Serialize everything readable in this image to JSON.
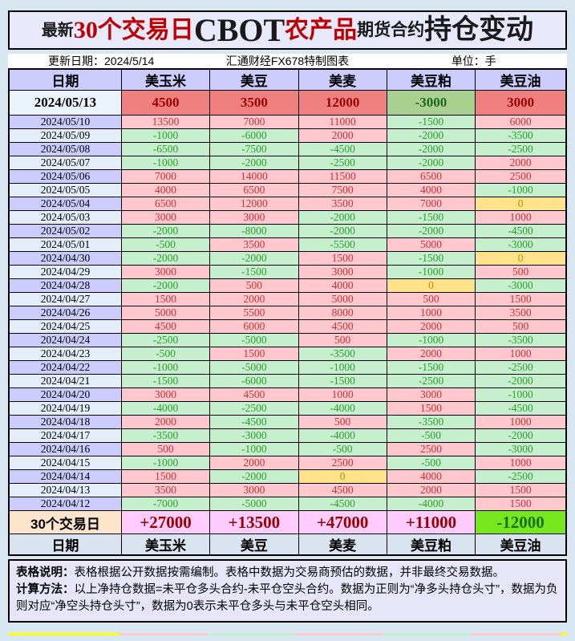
{
  "title": {
    "parts": [
      {
        "text": "最新"
      },
      {
        "text": "30个交易日"
      },
      {
        "text": "CBOT"
      },
      {
        "text": "农产品"
      },
      {
        "text": "期货合约"
      },
      {
        "text": "持仓变动"
      }
    ],
    "accent_red": "#c00000"
  },
  "subtitle": {
    "update_date": "更新日期：2024/5/14",
    "source": "汇通财经FX678特制图表",
    "unit": "单位：手"
  },
  "chart_data": {
    "type": "table",
    "title": "最新30个交易日CBOT农产品期货合约持仓变动",
    "unit": "手",
    "update_date": "2024/5/14",
    "columns": [
      "日期",
      "美玉米",
      "美豆",
      "美麦",
      "美豆粕",
      "美豆油"
    ],
    "rows": [
      {
        "date": "2024/05/13",
        "values": [
          4500,
          3500,
          12000,
          -3000,
          3000
        ],
        "latest": true
      },
      {
        "date": "2024/05/10",
        "values": [
          13500,
          7000,
          11000,
          -1500,
          6000
        ]
      },
      {
        "date": "2024/05/09",
        "values": [
          -1000,
          -6000,
          2000,
          -2000,
          -3500
        ]
      },
      {
        "date": "2024/05/08",
        "values": [
          -6500,
          -7500,
          -4500,
          -2000,
          -2500
        ]
      },
      {
        "date": "2024/05/07",
        "values": [
          -1000,
          -2000,
          -2500,
          -2000,
          2000
        ]
      },
      {
        "date": "2024/05/06",
        "values": [
          7000,
          14000,
          11500,
          6500,
          2500
        ]
      },
      {
        "date": "2024/05/05",
        "values": [
          4000,
          6500,
          7500,
          4000,
          -1000
        ]
      },
      {
        "date": "2024/05/04",
        "values": [
          6500,
          12000,
          3500,
          7000,
          0
        ]
      },
      {
        "date": "2024/05/03",
        "values": [
          3000,
          3000,
          -2000,
          -1500,
          1000
        ]
      },
      {
        "date": "2024/05/02",
        "values": [
          -2000,
          -8000,
          -2000,
          -2000,
          -4500
        ]
      },
      {
        "date": "2024/05/01",
        "values": [
          -500,
          3500,
          -5500,
          5000,
          -3000
        ]
      },
      {
        "date": "2024/04/30",
        "values": [
          -2000,
          -2000,
          1500,
          -1500,
          0
        ]
      },
      {
        "date": "2024/04/29",
        "values": [
          3000,
          -1500,
          3000,
          -1000,
          500
        ]
      },
      {
        "date": "2024/04/28",
        "values": [
          -2000,
          500,
          4000,
          0,
          -3000
        ]
      },
      {
        "date": "2024/04/27",
        "values": [
          1500,
          2000,
          5000,
          500,
          1500
        ]
      },
      {
        "date": "2024/04/26",
        "values": [
          5000,
          5500,
          8000,
          1000,
          3500
        ]
      },
      {
        "date": "2024/04/25",
        "values": [
          4500,
          6000,
          4500,
          2000,
          500
        ]
      },
      {
        "date": "2024/04/24",
        "values": [
          -2500,
          -5000,
          500,
          -1000,
          -3500
        ]
      },
      {
        "date": "2024/04/23",
        "values": [
          -500,
          1500,
          -3500,
          2000,
          1000
        ]
      },
      {
        "date": "2024/04/22",
        "values": [
          -1000,
          -5000,
          -1000,
          -1500,
          -2500
        ]
      },
      {
        "date": "2024/04/21",
        "values": [
          -1500,
          -6000,
          -1500,
          -2500,
          -2000
        ]
      },
      {
        "date": "2024/04/20",
        "values": [
          3000,
          4500,
          1000,
          3000,
          -1000
        ]
      },
      {
        "date": "2024/04/19",
        "values": [
          -4000,
          -2500,
          -4000,
          1500,
          -4500
        ]
      },
      {
        "date": "2024/04/18",
        "values": [
          2000,
          -4500,
          500,
          -3500,
          1000
        ]
      },
      {
        "date": "2024/04/17",
        "values": [
          -3500,
          -3000,
          -4000,
          -500,
          -2000
        ]
      },
      {
        "date": "2024/04/16",
        "values": [
          500,
          -1000,
          -500,
          2500,
          -3000
        ]
      },
      {
        "date": "2024/04/15",
        "values": [
          -1000,
          2000,
          2500,
          -500,
          1000
        ]
      },
      {
        "date": "2024/04/14",
        "values": [
          1500,
          -2000,
          0,
          4000,
          -2500
        ]
      },
      {
        "date": "2024/04/13",
        "values": [
          3500,
          3000,
          4500,
          2000,
          1500
        ]
      },
      {
        "date": "2024/04/12",
        "values": [
          -7000,
          -5000,
          -4500,
          -4000,
          1500
        ]
      }
    ],
    "totals": {
      "label": "30个交易日",
      "values": [
        27000,
        13500,
        47000,
        11000,
        -12000
      ],
      "values_display": [
        "+27000",
        "+13500",
        "+47000",
        "+11000",
        "-12000"
      ]
    },
    "footer_columns": [
      "日期",
      "美玉米",
      "美豆",
      "美麦",
      "美豆粕",
      "美豆油"
    ],
    "layout": {
      "grid": "black-bordered table",
      "legend_position": "none"
    }
  },
  "notes": {
    "line1_label": "表格说明：",
    "line1_text": "表格根据公开数据按需编制。表格中数据为交易商预估的数据，并非最终交易数据。",
    "line2_label": "计算方法：",
    "line2_text": "以上净持仓数据=未平仓多头合约-未平仓空头合约。数据为正则为“净多头持仓头寸”，数据为负则对应“净空头持仓头寸”，数据为0表示未平仓多头与未平仓空头相同。"
  },
  "footer_strip": {
    "colors": [
      "#ffff00",
      "#ffc7ce",
      "#c6efce",
      "#ffc7ce",
      "#c6efce",
      "#ffc7ce",
      "#ffff00"
    ]
  },
  "colors": {
    "page_background": "#d9e7f3",
    "title_background": "#e9e9fc",
    "header_background": "#ccccff",
    "date_row_lavender": "#ccccff",
    "date_row_blue": "#e4eef9",
    "positive_bg": "#ffc7ce",
    "positive_text": "#cc3333",
    "negative_bg": "#c6efce",
    "negative_text": "#2f9e2f",
    "zero_bg": "#ffe38a",
    "zero_text": "#bf8f00",
    "latest_positive_bg": "#f08080",
    "latest_positive_text": "#990000",
    "latest_negative_bg": "#a9d08e",
    "latest_negative_text": "#1e641e",
    "total_label_bg": "#fde4cc",
    "total_positive_bg": "#ffccff",
    "total_positive_text": "#990000",
    "total_negative_bg": "#77e81e",
    "total_negative_text": "#157515",
    "footer_header_bg": "#d9e4f0",
    "notes_bg": "#e6e6f8"
  }
}
